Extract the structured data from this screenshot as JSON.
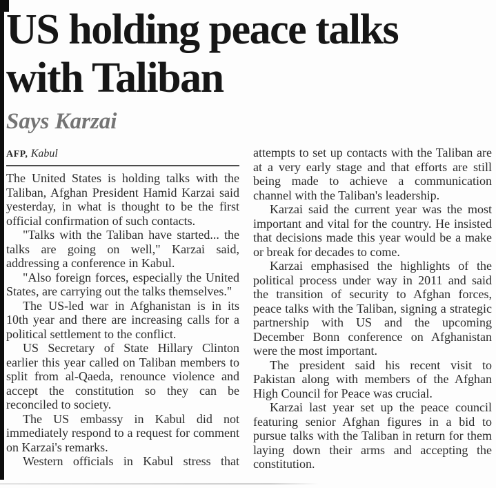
{
  "article": {
    "headline_lines": [
      "US holding peace talks",
      "with Taliban"
    ],
    "subhead": "Says Karzai",
    "byline": {
      "agency": "AFP,",
      "location": "Kabul"
    },
    "columns": {
      "left": [
        "The United States is holding talks with the Taliban, Afghan President Hamid Karzai said yesterday, in what is thought to be the first official confirmation of such contacts.",
        "\"Talks with the Taliban have started... the talks are going on well,\" Karzai said, addressing a conference in Kabul.",
        "\"Also foreign forces, especially the United States, are carrying out the talks themselves.\"",
        "The US-led war in Afghanistan is in its 10th year and there are increasing calls for a political settlement to the conflict.",
        "US Secretary of State Hillary Clinton earlier this year called on Taliban members to split from al-Qaeda, renounce violence and accept the constitution so they can be reconciled to society.",
        "The US embassy in Kabul did not immediately respond to a request for comment on Karzai's remarks.",
        "Western officials in Kabul stress that"
      ],
      "right": [
        "attempts to set up contacts with the Taliban are at a very early stage and that efforts are still being made to achieve a communication channel with the Taliban's leadership.",
        "Karzai said the current year was the most important and vital for the country. He insisted that decisions made this year would be a make or break for decades to come.",
        "Karzai emphasised the highlights of the political process under way in 2011 and said the transition of security to Afghan forces, peace talks with the Taliban, signing a strategic partnership with US and the upcoming December Bonn conference on Afghanistan were the most important.",
        "The president said his recent visit to Pakistan along with members of the Afghan High Council for Peace was crucial.",
        "Karzai last year set up the peace council featuring senior Afghan figures in a bid to pursue talks with the Taliban in return for them laying down their arms and accepting the constitution."
      ]
    }
  },
  "colors": {
    "headline": "#161616",
    "subhead": "#747474",
    "body_text": "#2b2b2b",
    "byline_rule": "#4c4c4c",
    "bottom_rule": "#cfcfcf",
    "background": "#fdfdfd"
  }
}
